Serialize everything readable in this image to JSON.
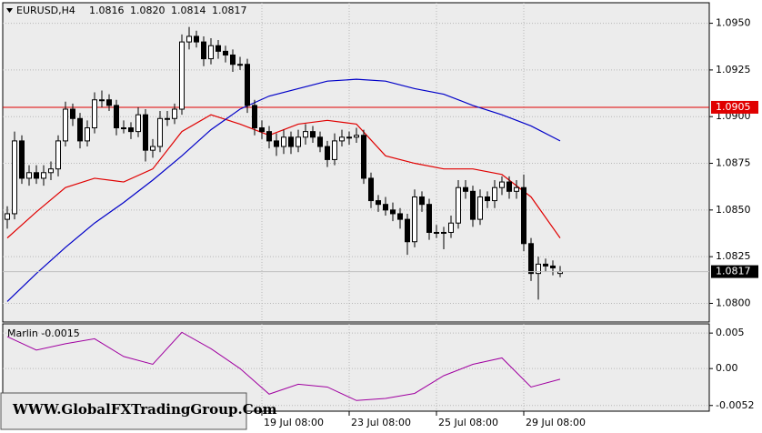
{
  "chart_data": {
    "type": "candlestick",
    "header": {
      "symbol": "EURUSD,H4",
      "values": [
        "1.0816",
        "1.0820",
        "1.0814",
        "1.0817"
      ]
    },
    "categories": [
      null,
      null,
      null,
      null,
      null,
      null,
      null,
      null,
      null,
      null,
      null,
      null,
      null,
      null,
      null,
      null,
      null,
      null,
      null,
      null,
      null,
      null,
      null,
      null,
      null,
      null,
      null,
      null,
      null,
      null,
      null,
      null,
      null,
      null,
      null,
      "19 Jul 08:00",
      null,
      null,
      null,
      null,
      null,
      null,
      null,
      null,
      null,
      null,
      null,
      "23 Jul 08:00",
      null,
      null,
      null,
      null,
      null,
      null,
      null,
      null,
      null,
      null,
      null,
      "25 Jul 08:00",
      null,
      null,
      null,
      null,
      null,
      null,
      null,
      null,
      null,
      null,
      null,
      "29 Jul 08:00",
      null,
      null,
      null,
      null,
      null
    ],
    "open": [
      1.0845,
      1.0848,
      1.0887,
      1.0867,
      1.087,
      1.0867,
      1.087,
      1.0872,
      1.0887,
      1.0904,
      1.0899,
      1.0887,
      1.0894,
      1.0909,
      1.0909,
      1.0906,
      1.0894,
      1.0894,
      1.0892,
      1.0901,
      1.0882,
      1.0884,
      1.0899,
      1.0899,
      1.0904,
      1.094,
      1.0943,
      1.094,
      1.0931,
      1.0938,
      1.0935,
      1.0933,
      1.0928,
      1.0928,
      1.0906,
      1.0894,
      1.0892,
      1.0887,
      1.0884,
      1.0889,
      1.0884,
      1.0889,
      1.0892,
      1.0889,
      1.0884,
      1.0877,
      1.0887,
      1.0889,
      1.0889,
      1.089,
      1.0867,
      1.0855,
      1.0853,
      1.085,
      1.0848,
      1.0845,
      1.0833,
      1.0857,
      1.0853,
      1.0838,
      1.0838,
      1.0838,
      1.0843,
      1.0862,
      1.086,
      1.0845,
      1.0857,
      1.0855,
      1.0862,
      1.0865,
      1.086,
      1.0862,
      1.0832,
      1.0816,
      1.0821,
      1.082,
      1.0816
    ],
    "high": [
      1.0852,
      1.0892,
      1.089,
      1.0874,
      1.0874,
      1.0874,
      1.0876,
      1.089,
      1.0908,
      1.0907,
      1.0902,
      1.0898,
      1.0913,
      1.0914,
      1.0912,
      1.0909,
      1.0898,
      1.0897,
      1.0905,
      1.0904,
      1.0888,
      1.0903,
      1.0903,
      1.0907,
      1.0944,
      1.0948,
      1.0946,
      1.0943,
      1.0942,
      1.0941,
      1.0938,
      1.0936,
      1.0932,
      1.0931,
      1.0909,
      1.0898,
      1.0895,
      1.0891,
      1.0893,
      1.0892,
      1.0893,
      1.0896,
      1.0895,
      1.0892,
      1.0887,
      1.0891,
      1.0893,
      1.0892,
      1.0894,
      1.0893,
      1.087,
      1.0858,
      1.0857,
      1.0854,
      1.0851,
      1.0848,
      1.0861,
      1.086,
      1.0856,
      1.0842,
      1.0841,
      1.0847,
      1.0866,
      1.0866,
      1.0863,
      1.0861,
      1.086,
      1.0866,
      1.0868,
      1.0868,
      1.0866,
      1.0869,
      1.0835,
      1.0825,
      1.0824,
      1.0823,
      1.082
    ],
    "low": [
      1.084,
      1.0845,
      1.0864,
      1.0863,
      1.0864,
      1.0863,
      1.0866,
      1.0868,
      1.0884,
      1.0895,
      1.0883,
      1.0884,
      1.0891,
      1.0905,
      1.0903,
      1.089,
      1.0891,
      1.0888,
      1.0889,
      1.0876,
      1.0878,
      1.0881,
      1.0895,
      1.0896,
      1.0901,
      1.0936,
      1.0937,
      1.0927,
      1.0928,
      1.0931,
      1.0929,
      1.0924,
      1.0925,
      1.0902,
      1.089,
      1.0888,
      1.0883,
      1.0879,
      1.088,
      1.088,
      1.0881,
      1.0885,
      1.0886,
      1.0881,
      1.0873,
      1.0874,
      1.0884,
      1.0885,
      1.0886,
      1.0864,
      1.0851,
      1.0849,
      1.0847,
      1.0844,
      1.084,
      1.0826,
      1.083,
      1.0849,
      1.0834,
      1.0835,
      1.0829,
      1.0835,
      1.084,
      1.0856,
      1.0841,
      1.0842,
      1.0851,
      1.0851,
      1.0858,
      1.0856,
      1.0856,
      1.0828,
      1.0812,
      1.0802,
      1.0817,
      1.0815,
      1.0814
    ],
    "close": [
      1.0848,
      1.0887,
      1.0867,
      1.087,
      1.0867,
      1.087,
      1.0872,
      1.0887,
      1.0904,
      1.0899,
      1.0887,
      1.0894,
      1.0909,
      1.0909,
      1.0906,
      1.0894,
      1.0894,
      1.0892,
      1.0901,
      1.0882,
      1.0884,
      1.0899,
      1.0899,
      1.0904,
      1.094,
      1.0943,
      1.094,
      1.0931,
      1.0938,
      1.0935,
      1.0933,
      1.0928,
      1.0928,
      1.0906,
      1.0894,
      1.0892,
      1.0887,
      1.0884,
      1.0889,
      1.0884,
      1.0889,
      1.0892,
      1.0889,
      1.0884,
      1.0877,
      1.0887,
      1.0889,
      1.0889,
      1.089,
      1.0867,
      1.0855,
      1.0853,
      1.085,
      1.0848,
      1.0845,
      1.0833,
      1.0857,
      1.0853,
      1.0838,
      1.0838,
      1.0838,
      1.0843,
      1.0862,
      1.086,
      1.0845,
      1.0857,
      1.0855,
      1.0862,
      1.0865,
      1.086,
      1.0862,
      1.0832,
      1.0816,
      1.0821,
      1.082,
      1.0819,
      1.0817
    ],
    "moving_averages": [
      {
        "color": "#e00000",
        "x": [
          0,
          4,
          8,
          12,
          16,
          20,
          24,
          28,
          32,
          36,
          40,
          44,
          48,
          52,
          56,
          60,
          64,
          68,
          72,
          76
        ],
        "values": [
          1.0835,
          1.0849,
          1.0862,
          1.0867,
          1.0865,
          1.0872,
          1.0892,
          1.0901,
          1.0896,
          1.089,
          1.0896,
          1.0898,
          1.0896,
          1.0879,
          1.0875,
          1.0872,
          1.0872,
          1.0869,
          1.0857,
          1.0835
        ]
      },
      {
        "color": "#0000c8",
        "x": [
          0,
          4,
          8,
          12,
          16,
          20,
          24,
          28,
          32,
          36,
          40,
          44,
          48,
          52,
          56,
          60,
          64,
          68,
          72,
          76
        ],
        "values": [
          1.0801,
          1.0816,
          1.083,
          1.0843,
          1.0854,
          1.0866,
          1.0879,
          1.0893,
          1.0904,
          1.0911,
          1.0915,
          1.0919,
          1.092,
          1.0919,
          1.0915,
          1.0912,
          1.0906,
          1.0901,
          1.0895,
          1.0887
        ]
      }
    ],
    "hline": {
      "value": 1.0905,
      "label": "1.0905",
      "color": "#e00000"
    },
    "current_price": {
      "value": 1.0817,
      "label": "1.0817"
    },
    "ylim": [
      1.079,
      1.0961
    ],
    "yticks": [
      {
        "value": 1.095,
        "label": "1.0950"
      },
      1.0925,
      {
        "value": 1.09,
        "label": "1.0900"
      },
      1.0875,
      {
        "value": 1.085,
        "label": "1.0850"
      },
      1.0825,
      {
        "value": 1.08,
        "label": "1.0800"
      }
    ],
    "grid": true,
    "oscillator": {
      "title": "Marlin -0.0015",
      "color": "#a000a0",
      "x": [
        0,
        4,
        8,
        12,
        16,
        20,
        24,
        28,
        32,
        36,
        40,
        44,
        48,
        52,
        56,
        60,
        64,
        68,
        72,
        76
      ],
      "values": [
        0.0045,
        0.0026,
        0.0035,
        0.0042,
        0.0017,
        0.0006,
        0.0051,
        0.0028,
        0.0,
        -0.0036,
        -0.0022,
        -0.0026,
        -0.0045,
        -0.0042,
        -0.0035,
        -0.001,
        0.0006,
        0.0015,
        -0.0026,
        -0.0015
      ],
      "ylim": [
        -0.006,
        0.0063
      ],
      "yticks": [
        0.005,
        {
          "value": 0,
          "label": "0.00"
        },
        -0.0052
      ]
    },
    "watermark": "WWW.GlobalFXTradingGroup.Com"
  }
}
